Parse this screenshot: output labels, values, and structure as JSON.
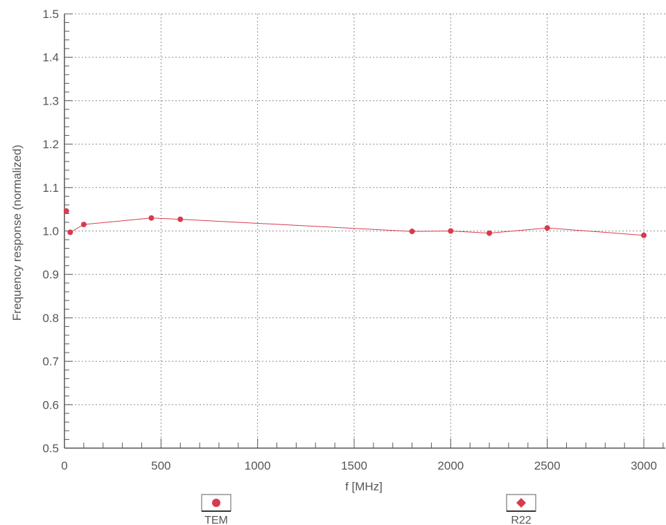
{
  "chart_data": {
    "type": "scatter",
    "title": "",
    "xlabel": "f [MHz]",
    "ylabel": "Frequency response (normalized)",
    "xlim": [
      0,
      3100
    ],
    "ylim": [
      0.5,
      1.5
    ],
    "x_ticks": [
      "0",
      "500",
      "1000",
      "1500",
      "2000",
      "2500",
      "3000"
    ],
    "x_tick_values": [
      0,
      500,
      1000,
      1500,
      2000,
      2500,
      3000
    ],
    "y_ticks": [
      "0.5",
      "0.6",
      "0.7",
      "0.8",
      "0.9",
      "1.0",
      "1.1",
      "1.2",
      "1.3",
      "1.4",
      "1.5"
    ],
    "y_tick_values": [
      0.5,
      0.6,
      0.7,
      0.8,
      0.9,
      1.0,
      1.1,
      1.2,
      1.3,
      1.4,
      1.5
    ],
    "grid": true,
    "legend_position": "bottom",
    "series": [
      {
        "name": "TEM",
        "marker": "circle",
        "color": "#d83a4e",
        "connected": true,
        "x": [
          10,
          30,
          100,
          450,
          600,
          1800,
          2000,
          2200,
          2500,
          3000
        ],
        "y": [
          1.046,
          0.997,
          1.015,
          1.03,
          1.027,
          0.999,
          1.0,
          0.995,
          1.007,
          0.99
        ]
      },
      {
        "name": "R22",
        "marker": "diamond",
        "color": "#d83a4e",
        "connected": false,
        "x": [],
        "y": []
      }
    ]
  }
}
